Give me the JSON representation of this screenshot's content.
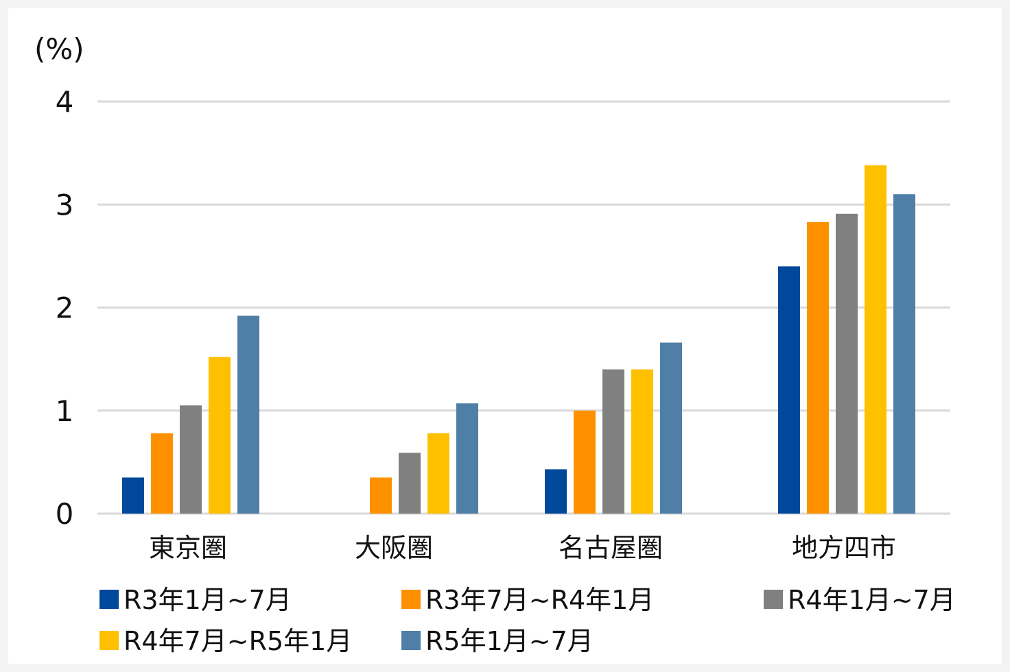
{
  "chart_data": {
    "type": "bar",
    "title": "",
    "unit_label": "(%)",
    "xlabel": "",
    "ylabel": "(%)",
    "ylim": [
      0,
      4
    ],
    "yticks": [
      "0",
      "1",
      "2",
      "3",
      "4"
    ],
    "grid": true,
    "legend_position": "bottom",
    "categories": [
      "東京圏",
      "大阪圏",
      "名古屋圏",
      "地方四市"
    ],
    "series": [
      {
        "name": "R3年1月~7月",
        "color": "#00489a",
        "values": [
          0.35,
          0.0,
          0.43,
          2.4
        ]
      },
      {
        "name": "R3年7月~R4年1月",
        "color": "#ff9100",
        "values": [
          0.78,
          0.35,
          1.0,
          2.83
        ]
      },
      {
        "name": "R4年1月~7月",
        "color": "#808080",
        "values": [
          1.05,
          0.59,
          1.4,
          2.91
        ]
      },
      {
        "name": "R4年7月~R5年1月",
        "color": "#ffc000",
        "values": [
          1.52,
          0.78,
          1.4,
          3.38
        ]
      },
      {
        "name": "R5年1月~7月",
        "color": "#4f7fa6",
        "values": [
          1.92,
          1.07,
          1.66,
          3.1
        ]
      }
    ]
  }
}
